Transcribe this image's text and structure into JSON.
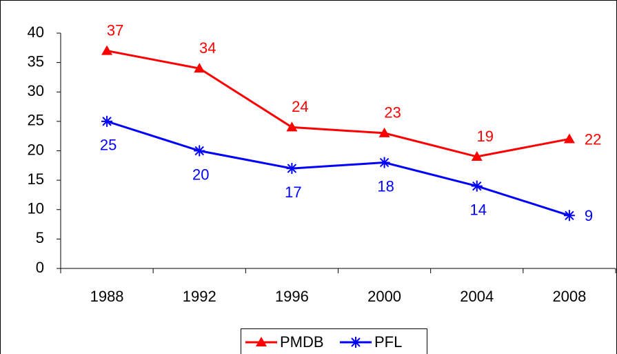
{
  "chart_data": {
    "type": "line",
    "categories": [
      "1988",
      "1992",
      "1996",
      "2000",
      "2004",
      "2008"
    ],
    "series": [
      {
        "name": "PMDB",
        "color": "#ff0000",
        "marker": "triangle",
        "values": [
          37,
          34,
          24,
          23,
          19,
          22
        ]
      },
      {
        "name": "PFL",
        "color": "#0000ff",
        "marker": "asterisk",
        "values": [
          25,
          20,
          17,
          18,
          14,
          9
        ]
      }
    ],
    "ylim": [
      0,
      40
    ],
    "yticks": [
      0,
      5,
      10,
      15,
      20,
      25,
      30,
      35,
      40
    ],
    "legend": "bottom"
  }
}
